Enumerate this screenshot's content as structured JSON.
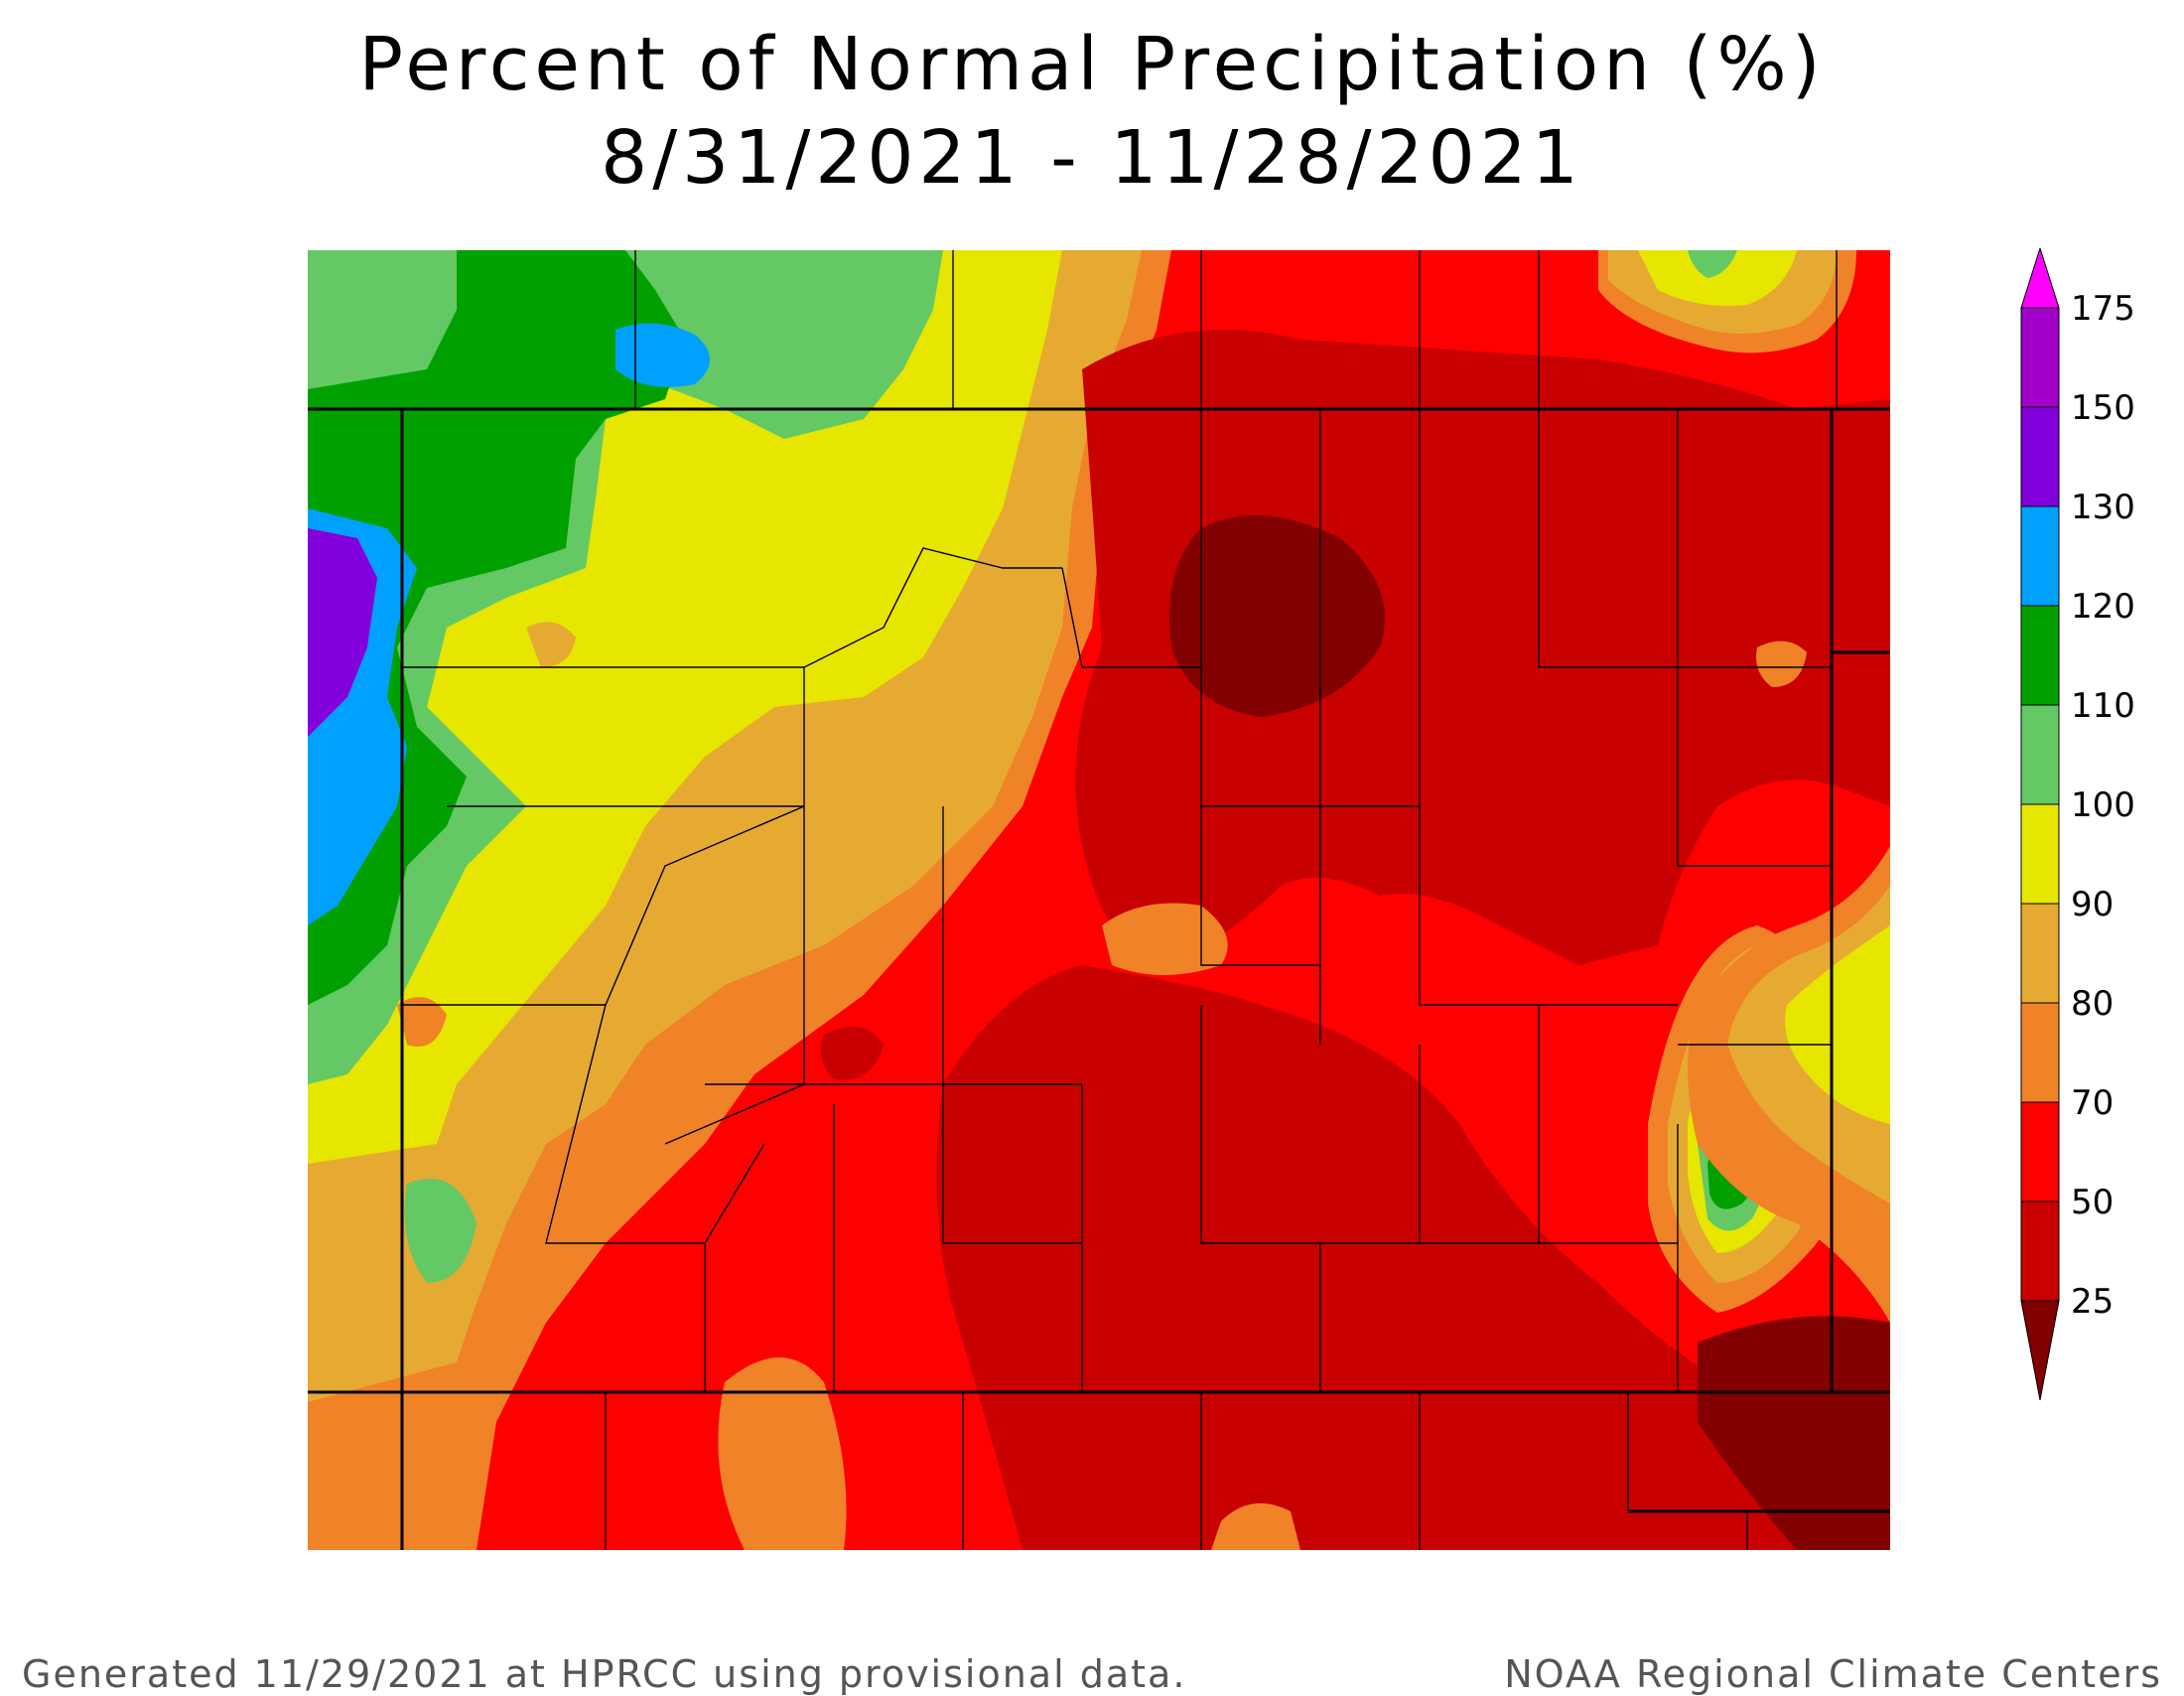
{
  "title_line1": "Percent of Normal Precipitation (%)",
  "title_line2": "8/31/2021 - 11/28/2021",
  "legend": {
    "levels": [
      {
        "label": "175",
        "color": "#ff00ff"
      },
      {
        "label": "150",
        "color": "#a000c8"
      },
      {
        "label": "130",
        "color": "#8200dc"
      },
      {
        "label": "120",
        "color": "#00a0ff"
      },
      {
        "label": "110",
        "color": "#00a000"
      },
      {
        "label": "100",
        "color": "#64c864"
      },
      {
        "label": "90",
        "color": "#e6e600"
      },
      {
        "label": "80",
        "color": "#e6aa32"
      },
      {
        "label": "70",
        "color": "#f08228"
      },
      {
        "label": "50",
        "color": "#ff0000"
      },
      {
        "label": "25",
        "color": "#c80000"
      }
    ],
    "lowest_color": "#820000"
  },
  "footer_left": "Generated 11/29/2021 at HPRCC using provisional data.",
  "footer_right": "NOAA Regional Climate Centers"
}
